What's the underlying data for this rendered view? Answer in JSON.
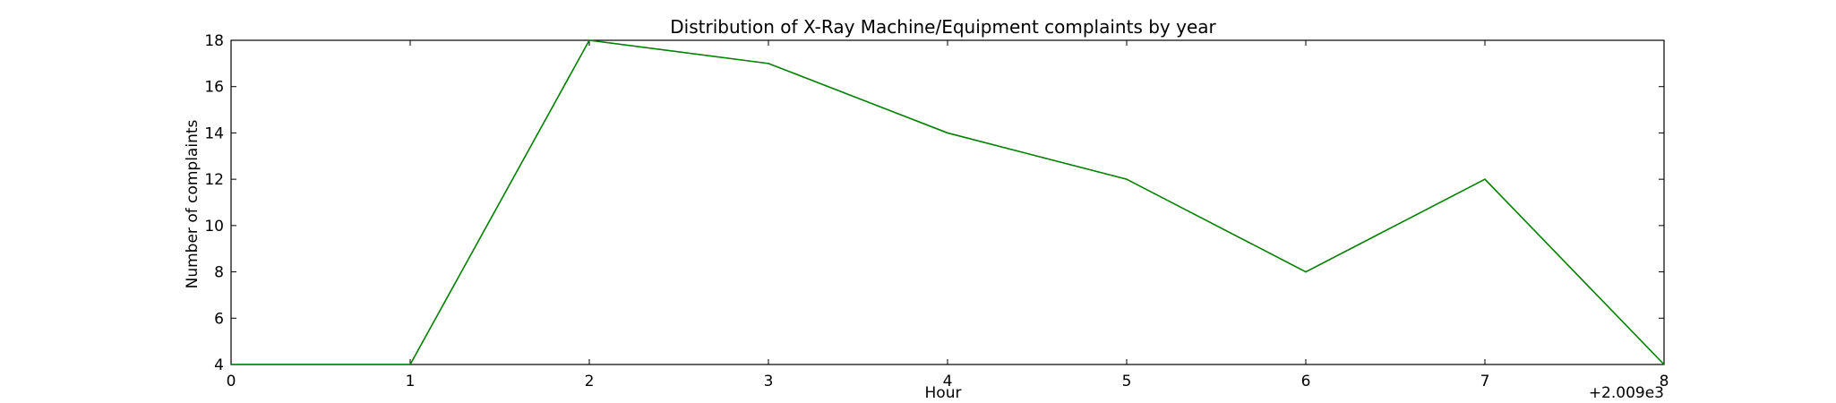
{
  "chart_data": {
    "type": "line",
    "title": "Distribution of  X-Ray Machine/Equipment complaints by year",
    "xlabel": "Hour",
    "ylabel": "Number of complaints",
    "x_offset_label": "+2.009e3",
    "x": [
      0,
      1,
      2,
      3,
      4,
      5,
      6,
      7,
      8
    ],
    "series": [
      {
        "values": [
          4,
          4,
          18,
          17,
          14,
          12,
          8,
          12,
          4
        ],
        "color": "#008000"
      }
    ],
    "xlim": [
      0,
      8
    ],
    "ylim": [
      4,
      18
    ],
    "xticks": [
      0,
      1,
      2,
      3,
      4,
      5,
      6,
      7,
      8
    ],
    "yticks": [
      4,
      6,
      8,
      10,
      12,
      14,
      16,
      18
    ],
    "grid": false,
    "legend": "none"
  }
}
